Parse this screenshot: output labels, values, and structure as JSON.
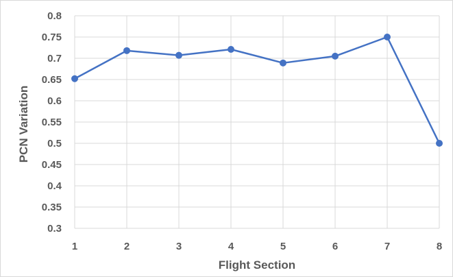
{
  "chart_data": {
    "type": "line",
    "title": "",
    "xlabel": "Flight Section",
    "ylabel": "PCN Variation",
    "x": [
      1,
      2,
      3,
      4,
      5,
      6,
      7,
      8
    ],
    "series": [
      {
        "values": [
          0.652,
          0.718,
          0.707,
          0.721,
          0.689,
          0.705,
          0.75,
          0.5
        ]
      }
    ],
    "ylim": [
      0.3,
      0.8
    ],
    "yticks": [
      "0.3",
      "0.35",
      "0.4",
      "0.45",
      "0.5",
      "0.55",
      "0.6",
      "0.65",
      "0.7",
      "0.75",
      "0.8"
    ],
    "xticks": [
      "1",
      "2",
      "3",
      "4",
      "5",
      "6",
      "7",
      "8"
    ],
    "grid": true,
    "legend": "none",
    "colors": {
      "line": "#4472c4",
      "grid": "#d9d9d9",
      "text": "#595959"
    }
  }
}
